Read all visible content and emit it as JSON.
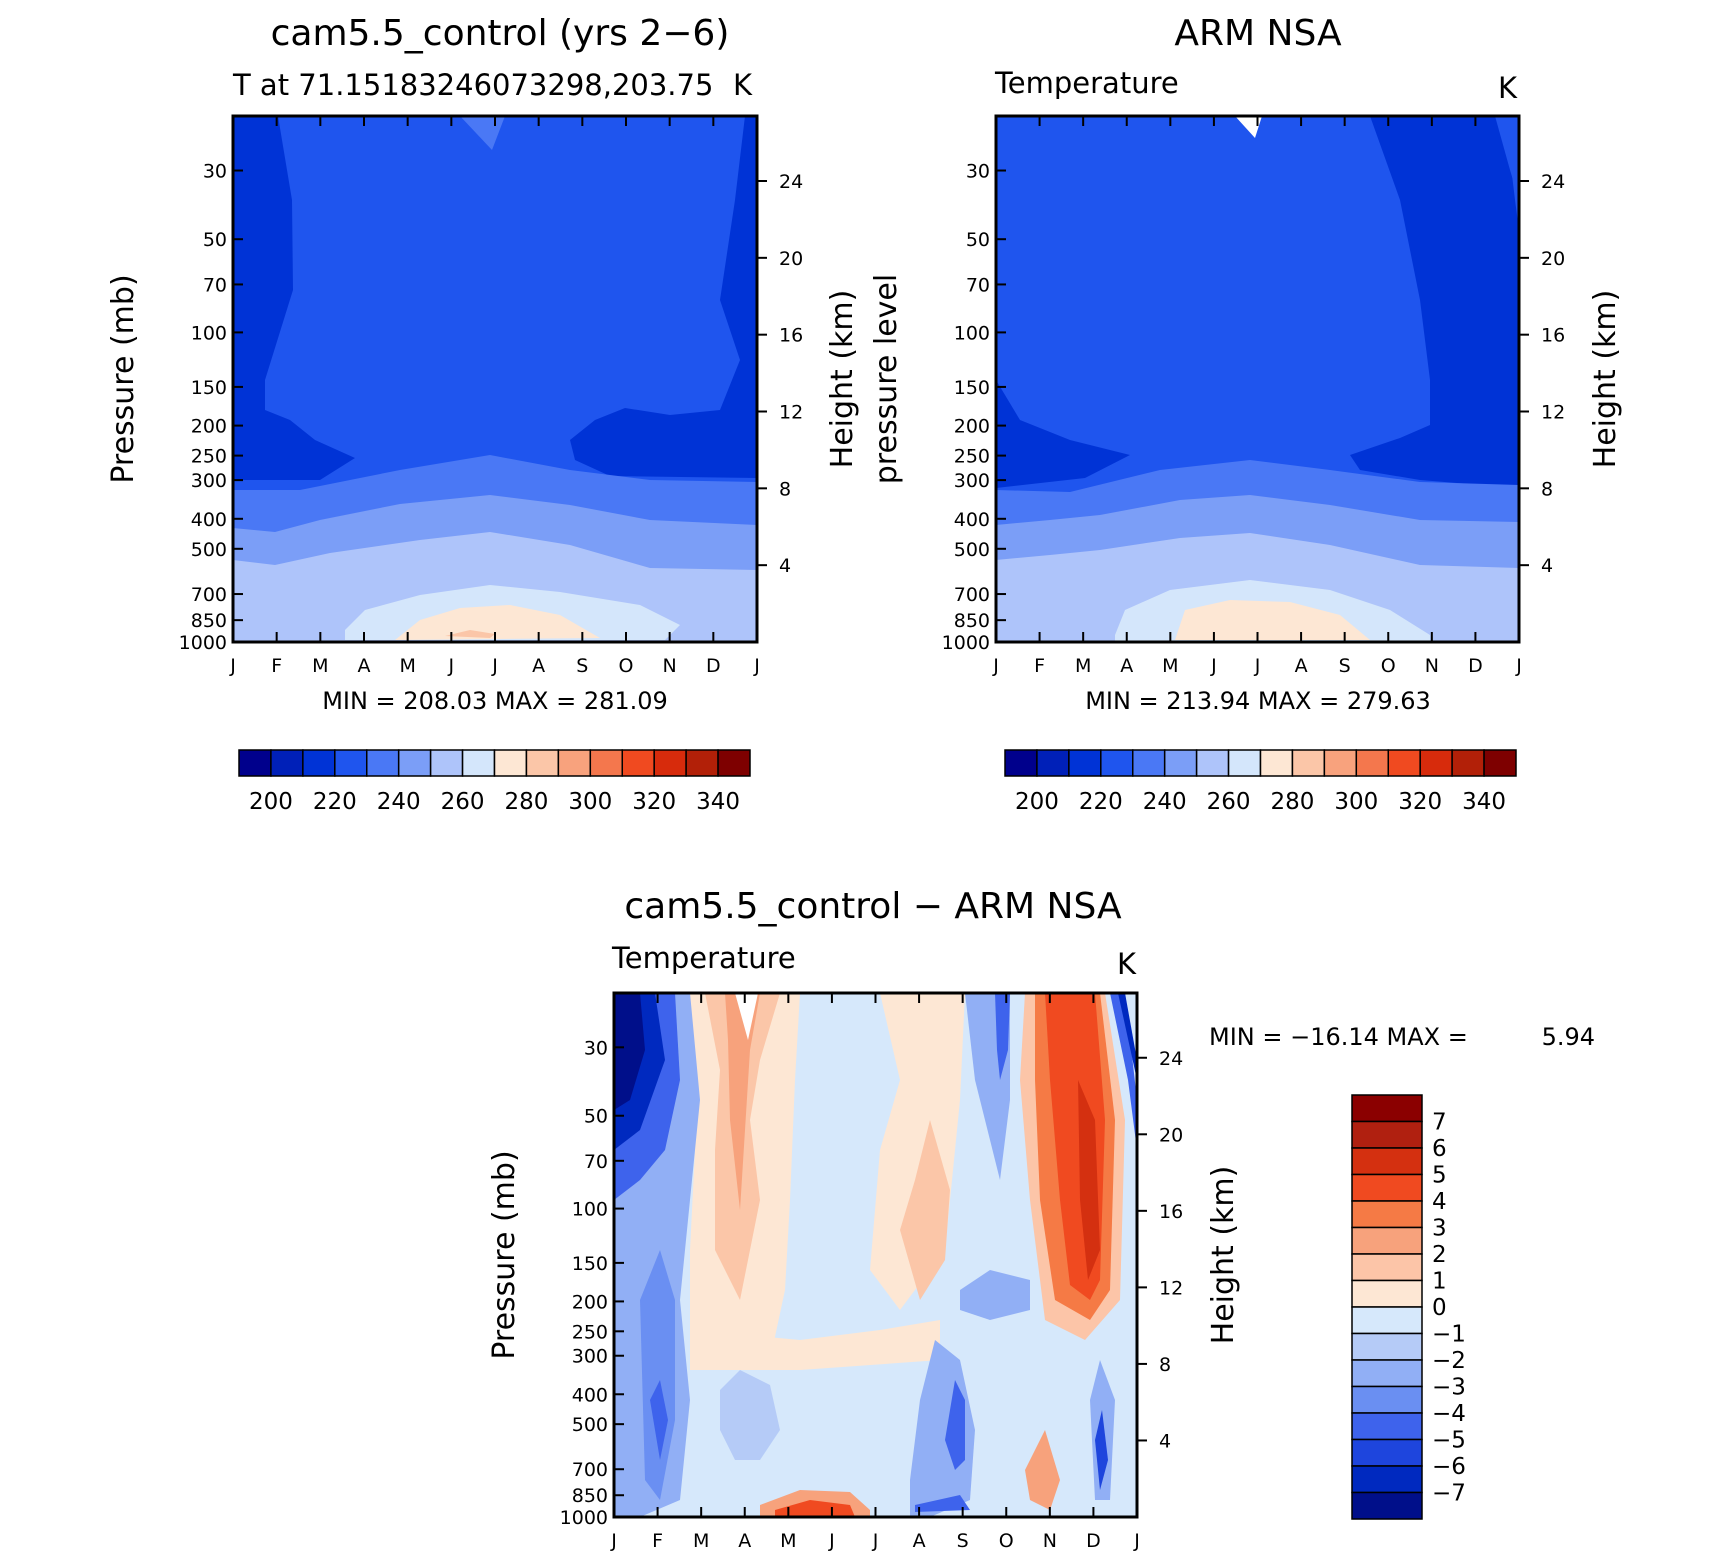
{
  "chart_data": [
    {
      "type": "contour",
      "title": "cam5.5_control (yrs 2−6)",
      "subtitle_left": "T at 71.15183246073298,203.75",
      "subtitle_right": "K",
      "ylabel": "Pressure (mb)",
      "ylabel_right": "Height (km)",
      "x_ticklabels": [
        "J",
        "F",
        "M",
        "A",
        "M",
        "J",
        "J",
        "A",
        "S",
        "O",
        "N",
        "D",
        "J"
      ],
      "y_ticks": [
        30,
        50,
        70,
        100,
        150,
        200,
        250,
        300,
        400,
        500,
        700,
        850,
        1000
      ],
      "y_right_ticks": [
        24,
        20,
        16,
        12,
        8,
        4
      ],
      "stats": "MIN = 208.03 MAX = 281.09",
      "min": 208.03,
      "max": 281.09,
      "colorbar_labels": [
        "200",
        "220",
        "240",
        "260",
        "280",
        "300",
        "320",
        "340"
      ],
      "colorbar_orientation": "horizontal"
    },
    {
      "type": "contour",
      "title": "ARM NSA",
      "subtitle_left": "Temperature",
      "subtitle_right": "K",
      "ylabel": "pressure level",
      "ylabel_right": "Height (km)",
      "x_ticklabels": [
        "J",
        "F",
        "M",
        "A",
        "M",
        "J",
        "J",
        "A",
        "S",
        "O",
        "N",
        "D",
        "J"
      ],
      "y_ticks": [
        30,
        50,
        70,
        100,
        150,
        200,
        250,
        300,
        400,
        500,
        700,
        850,
        1000
      ],
      "y_right_ticks": [
        24,
        20,
        16,
        12,
        8,
        4
      ],
      "stats": "MIN = 213.94 MAX = 279.63",
      "min": 213.94,
      "max": 279.63,
      "colorbar_labels": [
        "200",
        "220",
        "240",
        "260",
        "280",
        "300",
        "320",
        "340"
      ],
      "colorbar_orientation": "horizontal"
    },
    {
      "type": "contour",
      "title": "cam5.5_control − ARM NSA",
      "subtitle_left": "Temperature",
      "subtitle_right": "K",
      "ylabel": "Pressure (mb)",
      "ylabel_right": "Height (km)",
      "x_ticklabels": [
        "J",
        "F",
        "M",
        "A",
        "M",
        "J",
        "J",
        "A",
        "S",
        "O",
        "N",
        "D",
        "J"
      ],
      "y_ticks": [
        30,
        50,
        70,
        100,
        150,
        200,
        250,
        300,
        400,
        500,
        700,
        850,
        1000
      ],
      "y_right_ticks": [
        24,
        20,
        16,
        12,
        8,
        4
      ],
      "stats_label": "MIN = −16.14 MAX =",
      "stats_max": "5.94",
      "min": -16.14,
      "max": 5.94,
      "colorbar_labels": [
        "7",
        "6",
        "5",
        "4",
        "3",
        "2",
        "1",
        "0",
        "−1",
        "−2",
        "−3",
        "−4",
        "−5",
        "−6",
        "−7"
      ],
      "colorbar_orientation": "vertical"
    }
  ],
  "colors": {
    "abs_scale": [
      "#00008c",
      "#0020b8",
      "#0033d6",
      "#1f55ee",
      "#4a78f5",
      "#7b9ef7",
      "#aec4fa",
      "#d4e6fb",
      "#fde7d4",
      "#fbc6a8",
      "#f8a27d",
      "#f4774d",
      "#f04a20",
      "#d72b0c",
      "#b22008",
      "#7e0000"
    ],
    "diff_scale": [
      "#8b0000",
      "#b02010",
      "#d43010",
      "#f04a20",
      "#f57a45",
      "#f7a27c",
      "#fcc5a8",
      "#fde7d4",
      "#d6e8fb",
      "#b5cbf7",
      "#91aff5",
      "#6a8ff2",
      "#3e63ec",
      "#1e45dd",
      "#0029bf",
      "#000f8a"
    ],
    "missing": "#ffffff"
  }
}
